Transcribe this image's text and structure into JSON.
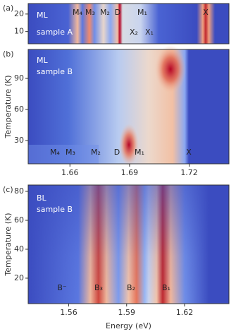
{
  "chart_data": [
    {
      "type": "heatmap",
      "panel_label": "(a)",
      "ylim": [
        3,
        26
      ],
      "yticks": [
        10,
        20
      ],
      "annotations": [
        "ML",
        "sample A",
        "M₄",
        "M₃",
        "M₂",
        "D",
        "M₁",
        "X₂",
        "X₁",
        "X"
      ]
    },
    {
      "type": "heatmap",
      "panel_label": "(b)",
      "ylabel": "Temperature (K)",
      "ylim": [
        7.5,
        118
      ],
      "yticks": [
        30,
        60,
        90
      ],
      "xlim": [
        1.639,
        1.74
      ],
      "xticks": [
        1.66,
        1.69,
        1.72
      ],
      "annotations": [
        "ML",
        "sample B",
        "M₄",
        "M₃",
        "M₂",
        "D",
        "M₁",
        "X"
      ]
    },
    {
      "type": "heatmap",
      "panel_label": "(c)",
      "ylabel": "Temperature (K)",
      "xlabel": "Energy (eV)",
      "ylim": [
        2.4,
        84.4
      ],
      "yticks": [
        20,
        40,
        60,
        80
      ],
      "xlim": [
        1.539,
        1.643
      ],
      "xticks": [
        1.56,
        1.59,
        1.62
      ],
      "annotations": [
        "BL",
        "sample B",
        "B⁻",
        "B₃",
        "B₂",
        "B₁"
      ]
    }
  ]
}
